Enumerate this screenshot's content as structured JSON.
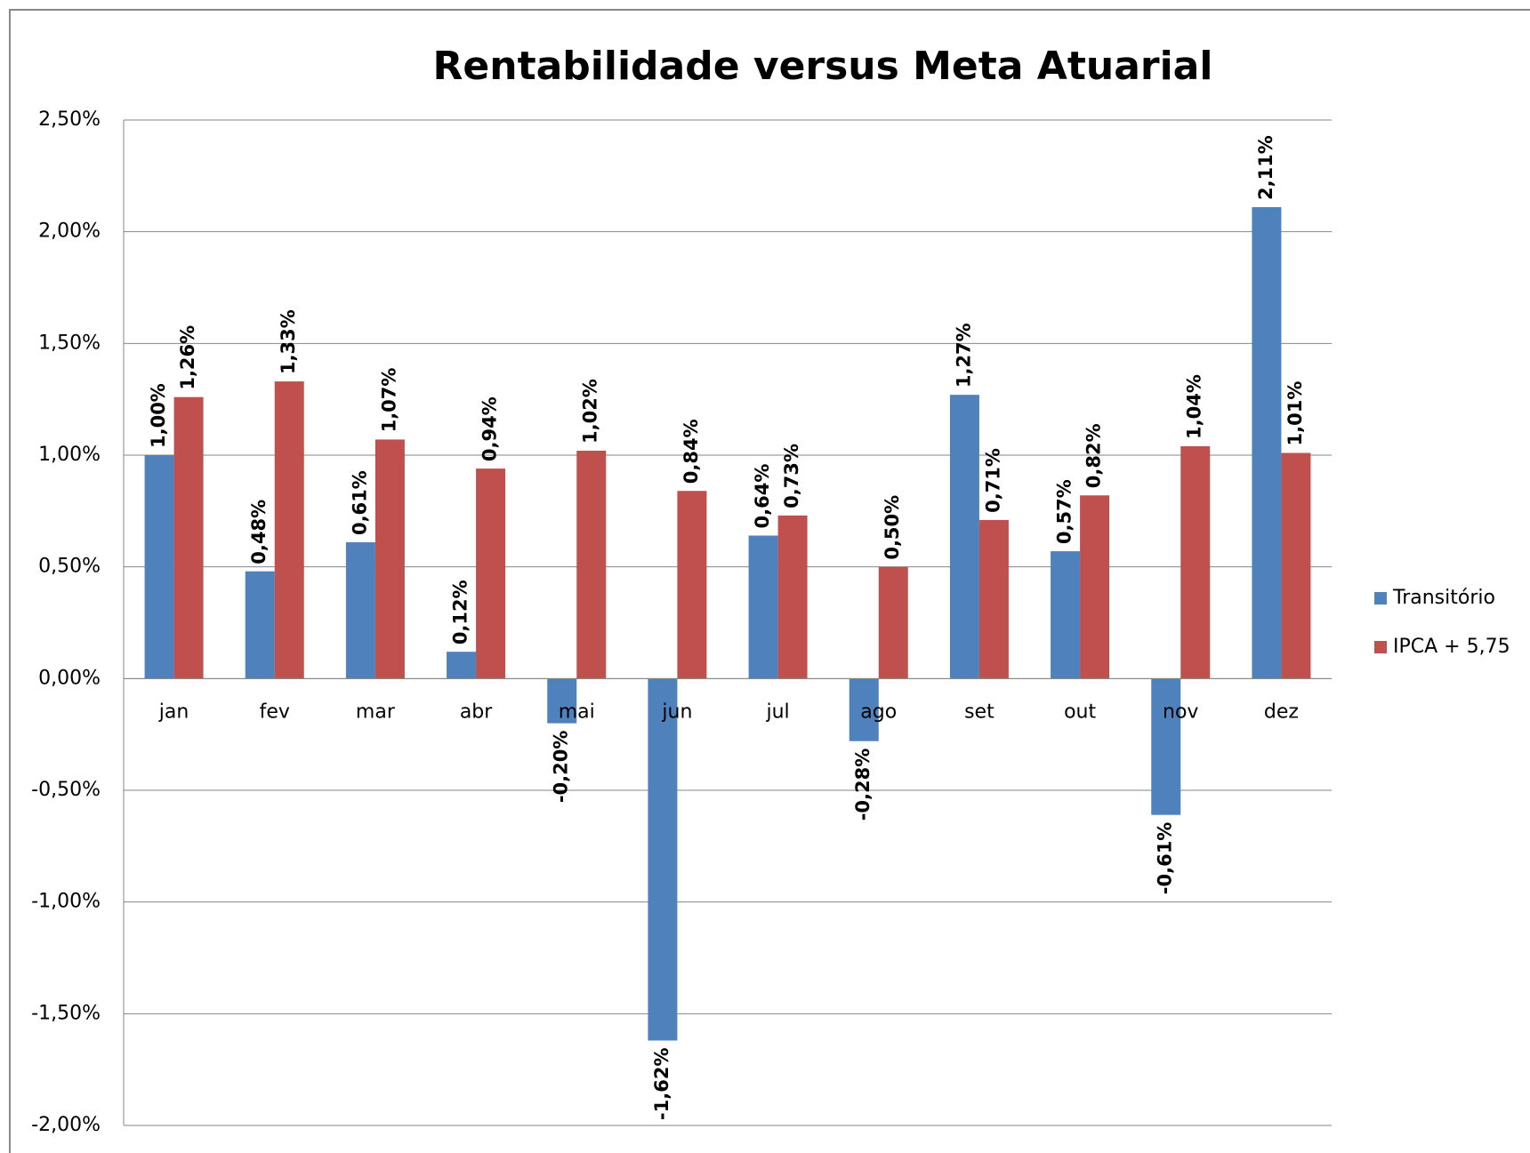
{
  "chart_data": {
    "type": "bar",
    "title": "Rentabilidade versus Meta Atuarial",
    "categories": [
      "jan",
      "fev",
      "mar",
      "abr",
      "mai",
      "jun",
      "jul",
      "ago",
      "set",
      "out",
      "nov",
      "dez"
    ],
    "series": [
      {
        "name": "Transitório",
        "color": "#4f81bd",
        "values": [
          1.0,
          0.48,
          0.61,
          0.12,
          -0.2,
          -1.62,
          0.64,
          -0.28,
          1.27,
          0.57,
          -0.61,
          2.11
        ],
        "value_labels": [
          "1,00%",
          "0,48%",
          "0,61%",
          "0,12%",
          "-0,20%",
          "-1,62%",
          "0,64%",
          "-0,28%",
          "1,27%",
          "0,57%",
          "-0,61%",
          "2,11%"
        ]
      },
      {
        "name": "IPCA + 5,75",
        "color": "#c0504d",
        "values": [
          1.26,
          1.33,
          1.07,
          0.94,
          1.02,
          0.84,
          0.73,
          0.5,
          0.71,
          0.82,
          1.04,
          1.01
        ],
        "value_labels": [
          "1,26%",
          "1,33%",
          "1,07%",
          "0,94%",
          "1,02%",
          "0,84%",
          "0,73%",
          "0,50%",
          "0,71%",
          "0,82%",
          "1,04%",
          "1,01%"
        ]
      }
    ],
    "ylim": [
      -2,
      2.5
    ],
    "yticks": [
      {
        "value": -2,
        "label": "-2,00%"
      },
      {
        "value": -1.5,
        "label": "-1,50%"
      },
      {
        "value": -1,
        "label": "-1,00%"
      },
      {
        "value": -0.5,
        "label": "-0,50%"
      },
      {
        "value": 0,
        "label": "0,00%"
      },
      {
        "value": 0.5,
        "label": "0,50%"
      },
      {
        "value": 1,
        "label": "1,00%"
      },
      {
        "value": 1.5,
        "label": "1,50%"
      },
      {
        "value": 2,
        "label": "2,00%"
      },
      {
        "value": 2.5,
        "label": "2,50%"
      }
    ],
    "grid": true,
    "legend": "right"
  }
}
